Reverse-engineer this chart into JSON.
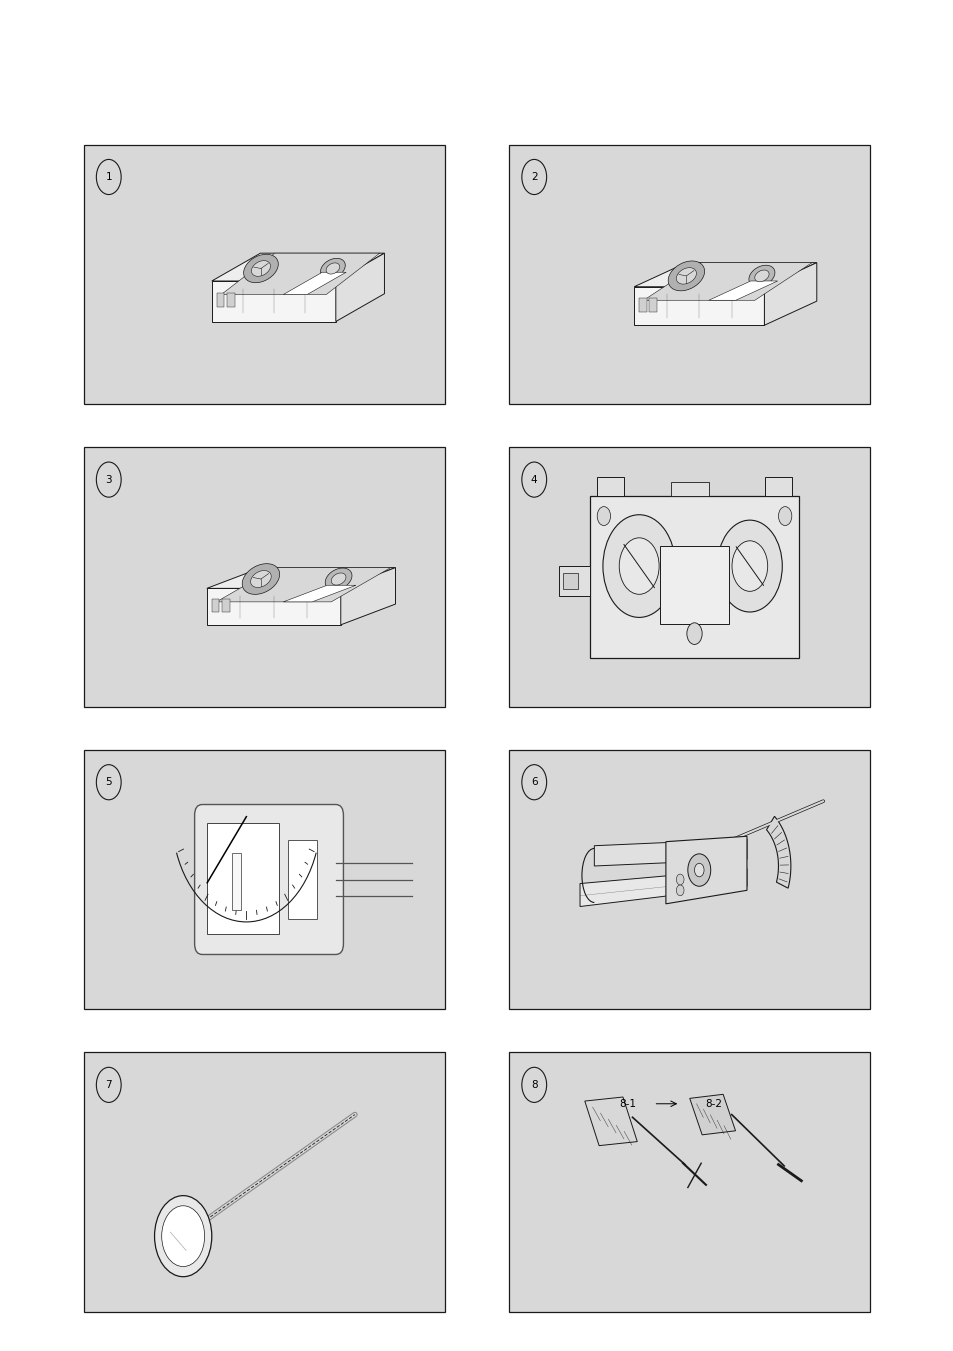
{
  "bg": "#ffffff",
  "box_bg": "#d8d8d8",
  "box_edge": "#333333",
  "lc": "#1a1a1a",
  "fig_w": 9.54,
  "fig_h": 13.51,
  "dpi": 100,
  "ml": 0.088,
  "mt": 0.107,
  "bw": 0.378,
  "bh": 0.192,
  "cg": 0.068,
  "rg": 0.032
}
